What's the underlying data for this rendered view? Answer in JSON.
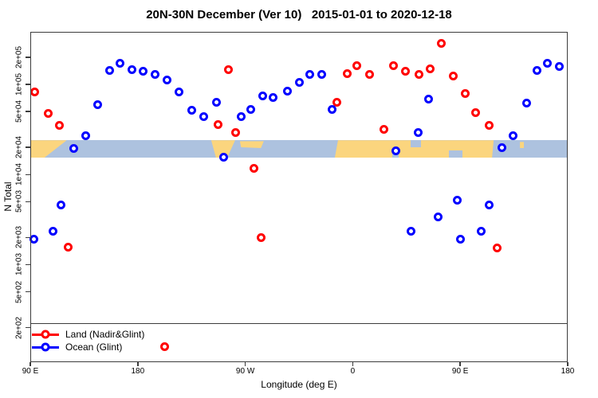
{
  "chart_data": {
    "type": "scatter",
    "title": "20N-30N December (Ver 10)   2015-01-01 to 2020-12-18",
    "xlabel": "Longitude (deg E)",
    "ylabel": "N Total",
    "y_scale": "log",
    "x_range": [
      90,
      540
    ],
    "y_range": [
      100,
      400000
    ],
    "grid": false,
    "x_ticks": [
      {
        "lon": 90,
        "label": "90 E"
      },
      {
        "lon": 180,
        "label": "180"
      },
      {
        "lon": 270,
        "label": "90 W"
      },
      {
        "lon": 360,
        "label": "0"
      },
      {
        "lon": 450,
        "label": "90 E"
      },
      {
        "lon": 540,
        "label": "180"
      }
    ],
    "y_ticks": [
      {
        "value": 200000,
        "label": "2e+05"
      },
      {
        "value": 100000,
        "label": "1e+05"
      },
      {
        "value": 50000,
        "label": "5e+04"
      },
      {
        "value": 20000,
        "label": "2e+04"
      },
      {
        "value": 10000,
        "label": "1e+04"
      },
      {
        "value": 5000,
        "label": "5e+03"
      },
      {
        "value": 2000,
        "label": "2e+03"
      },
      {
        "value": 1000,
        "label": "1e+03"
      },
      {
        "value": 500,
        "label": "5e+02"
      },
      {
        "value": 200,
        "label": "2e+02"
      }
    ],
    "map_band": {
      "description": "land/ocean strip for the 20N-30N latitude belt drawn across the plot",
      "ocean_color": "#ADC2DF",
      "land_color": "#FBD57E",
      "n_top": 24000,
      "n_bottom": 15400,
      "land_segments": [
        {
          "lon0": 90,
          "lon1": 120.5,
          "clip": "polygon(0 0, 100% 0, 39% 100%, 0 100%)"
        },
        {
          "lon0": 241.5,
          "lon1": 261.5,
          "clip": "polygon(0 0, 100% 0, 67% 100%, 20% 100%)"
        },
        {
          "lon0": 265.5,
          "lon1": 285.5,
          "clip": "polygon(0 5%, 100% 5%, 88% 45%, 5% 40%)"
        },
        {
          "lon0": 345,
          "lon1": 478,
          "clip": "polygon(2% 0, 100% 0, 99% 100%, 0 100%)"
        },
        {
          "lon0": 500,
          "lon1": 503.5,
          "clip": "polygon(0 10%, 100% 10%, 100% 45%, 0 45%)"
        }
      ],
      "water_notches": [
        {
          "lon0": 408.5,
          "lon1": 417,
          "vert": "top"
        },
        {
          "lon0": 440.5,
          "lon1": 452,
          "vert": "bottom"
        },
        {
          "lon0": 393,
          "lon1": 398.5,
          "vert": "bottom"
        }
      ]
    },
    "series": [
      {
        "name": "Land (Nadir&Glint)",
        "color": "#FF0000",
        "marker": "open-circle",
        "points": [
          {
            "lon": 94.0,
            "n": 83000
          },
          {
            "lon": 104.7,
            "n": 48000
          },
          {
            "lon": 114.7,
            "n": 35000
          },
          {
            "lon": 122.0,
            "n": 1550
          },
          {
            "lon": 202.8,
            "n": 122
          },
          {
            "lon": 246.9,
            "n": 35500
          },
          {
            "lon": 255.6,
            "n": 147000
          },
          {
            "lon": 261.6,
            "n": 29000
          },
          {
            "lon": 277.0,
            "n": 11800
          },
          {
            "lon": 283.6,
            "n": 1980
          },
          {
            "lon": 347.0,
            "n": 64000
          },
          {
            "lon": 355.1,
            "n": 133000
          },
          {
            "lon": 363.7,
            "n": 160000
          },
          {
            "lon": 373.8,
            "n": 130000
          },
          {
            "lon": 385.8,
            "n": 32000
          },
          {
            "lon": 393.8,
            "n": 160000
          },
          {
            "lon": 403.8,
            "n": 141000
          },
          {
            "lon": 415.2,
            "n": 130000
          },
          {
            "lon": 424.5,
            "n": 150000
          },
          {
            "lon": 433.9,
            "n": 283000
          },
          {
            "lon": 443.9,
            "n": 125000
          },
          {
            "lon": 453.9,
            "n": 80000
          },
          {
            "lon": 462.6,
            "n": 49000
          },
          {
            "lon": 474.0,
            "n": 35000
          },
          {
            "lon": 480.6,
            "n": 1520
          }
        ]
      },
      {
        "name": "Ocean (Glint)",
        "color": "#0000FF",
        "marker": "open-circle",
        "points": [
          {
            "lon": 92.7,
            "n": 1900
          },
          {
            "lon": 108.7,
            "n": 2330
          },
          {
            "lon": 116.0,
            "n": 4550
          },
          {
            "lon": 126.1,
            "n": 19300
          },
          {
            "lon": 136.1,
            "n": 27000
          },
          {
            "lon": 146.1,
            "n": 60000
          },
          {
            "lon": 156.1,
            "n": 144000
          },
          {
            "lon": 164.8,
            "n": 170000
          },
          {
            "lon": 174.8,
            "n": 147000
          },
          {
            "lon": 184.8,
            "n": 139000
          },
          {
            "lon": 194.8,
            "n": 130000
          },
          {
            "lon": 204.8,
            "n": 113000
          },
          {
            "lon": 214.8,
            "n": 82000
          },
          {
            "lon": 224.9,
            "n": 52000
          },
          {
            "lon": 234.9,
            "n": 44000
          },
          {
            "lon": 245.6,
            "n": 64000
          },
          {
            "lon": 251.6,
            "n": 15700
          },
          {
            "lon": 266.3,
            "n": 44000
          },
          {
            "lon": 274.9,
            "n": 53000
          },
          {
            "lon": 284.3,
            "n": 74000
          },
          {
            "lon": 293.6,
            "n": 72000
          },
          {
            "lon": 305.0,
            "n": 85000
          },
          {
            "lon": 315.6,
            "n": 106000
          },
          {
            "lon": 324.3,
            "n": 130000
          },
          {
            "lon": 333.7,
            "n": 128000
          },
          {
            "lon": 343.0,
            "n": 53000
          },
          {
            "lon": 396.4,
            "n": 18500
          },
          {
            "lon": 409.1,
            "n": 2370
          },
          {
            "lon": 414.5,
            "n": 29000
          },
          {
            "lon": 423.8,
            "n": 69000
          },
          {
            "lon": 431.2,
            "n": 3420
          },
          {
            "lon": 447.2,
            "n": 5140
          },
          {
            "lon": 450.5,
            "n": 1900
          },
          {
            "lon": 467.3,
            "n": 2330
          },
          {
            "lon": 474.0,
            "n": 4550
          },
          {
            "lon": 484.6,
            "n": 19700
          },
          {
            "lon": 494.0,
            "n": 26700
          },
          {
            "lon": 505.3,
            "n": 61500
          },
          {
            "lon": 514.0,
            "n": 144000
          },
          {
            "lon": 523.3,
            "n": 173000
          },
          {
            "lon": 533.3,
            "n": 157000
          }
        ]
      }
    ]
  },
  "legend": {
    "items": [
      {
        "label": "Land (Nadir&Glint)",
        "color": "#FF0000"
      },
      {
        "label": "Ocean (Glint)",
        "color": "#0000FF"
      }
    ]
  }
}
